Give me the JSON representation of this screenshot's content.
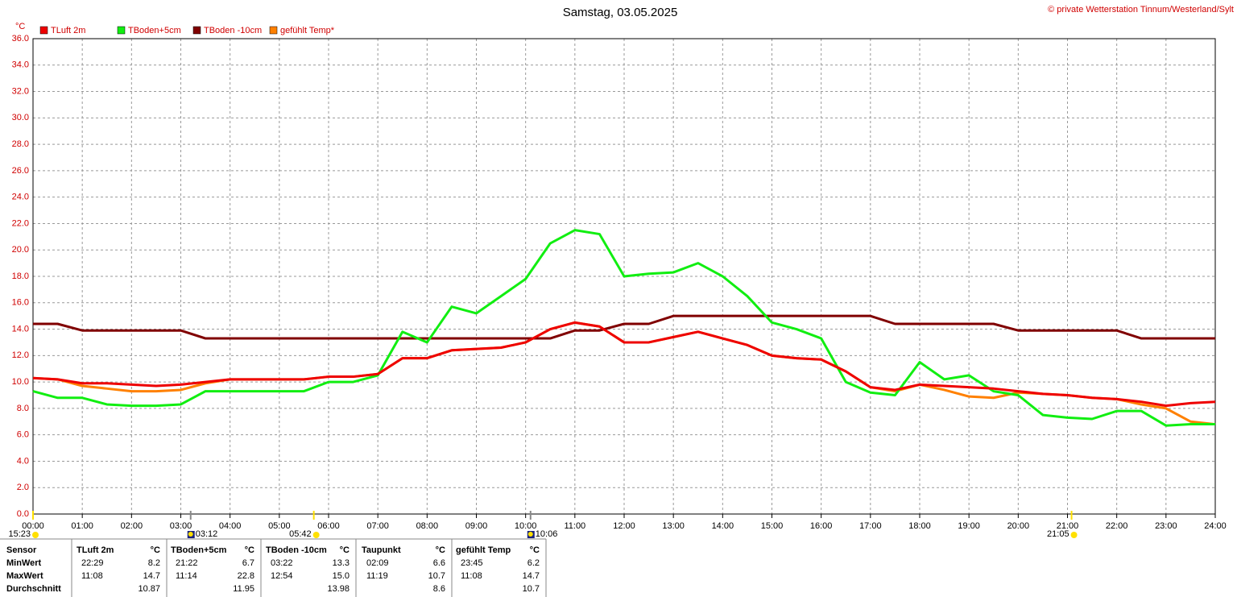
{
  "chart_data": {
    "type": "line",
    "title": "Samstag, 03.05.2025",
    "credit": "© private Wetterstation Tinnum/Westerland/Sylt",
    "ylabel": "°C",
    "x": [
      0,
      0.5,
      1,
      1.5,
      2,
      2.5,
      3,
      3.5,
      4,
      4.5,
      5,
      5.5,
      6,
      6.5,
      7,
      7.5,
      8,
      8.5,
      9,
      9.5,
      10,
      10.5,
      11,
      11.5,
      12,
      12.5,
      13,
      13.5,
      14,
      14.5,
      15,
      15.5,
      16,
      16.5,
      17,
      17.5,
      18,
      18.5,
      19,
      19.5,
      20,
      20.5,
      21,
      21.5,
      22,
      22.5,
      23,
      23.5,
      24
    ],
    "series": [
      {
        "name": "TLuft 2m",
        "color": "#ee0000",
        "values": [
          10.3,
          10.2,
          9.9,
          9.9,
          9.8,
          9.7,
          9.8,
          10.0,
          10.2,
          10.2,
          10.2,
          10.2,
          10.4,
          10.4,
          10.6,
          11.8,
          11.8,
          12.4,
          12.5,
          12.6,
          13.0,
          14.0,
          14.5,
          14.2,
          13.0,
          13.0,
          13.4,
          13.8,
          13.3,
          12.8,
          12.0,
          11.8,
          11.7,
          10.8,
          9.6,
          9.4,
          9.8,
          9.7,
          9.6,
          9.5,
          9.3,
          9.1,
          9.0,
          8.8,
          8.7,
          8.5,
          8.2,
          8.4,
          8.5
        ]
      },
      {
        "name": "TBoden+5cm",
        "color": "#11ee11",
        "values": [
          9.3,
          8.8,
          8.8,
          8.3,
          8.2,
          8.2,
          8.3,
          9.3,
          9.3,
          9.3,
          9.3,
          9.3,
          10.0,
          10.0,
          10.5,
          13.8,
          13.0,
          15.7,
          15.2,
          16.5,
          17.8,
          20.5,
          21.5,
          21.2,
          18.0,
          18.2,
          18.3,
          19.0,
          18.0,
          16.5,
          14.5,
          14.0,
          13.3,
          10.0,
          9.2,
          9.0,
          11.5,
          10.2,
          10.5,
          9.3,
          9.0,
          7.5,
          7.3,
          7.2,
          7.8,
          7.8,
          6.7,
          6.8,
          6.8
        ]
      },
      {
        "name": "TBoden -10cm",
        "color": "#800000",
        "values": [
          14.4,
          14.4,
          13.9,
          13.9,
          13.9,
          13.9,
          13.9,
          13.3,
          13.3,
          13.3,
          13.3,
          13.3,
          13.3,
          13.3,
          13.3,
          13.3,
          13.3,
          13.3,
          13.3,
          13.3,
          13.3,
          13.3,
          13.9,
          13.9,
          14.4,
          14.4,
          15.0,
          15.0,
          15.0,
          15.0,
          15.0,
          15.0,
          15.0,
          15.0,
          15.0,
          14.4,
          14.4,
          14.4,
          14.4,
          14.4,
          13.9,
          13.9,
          13.9,
          13.9,
          13.9,
          13.3,
          13.3,
          13.3,
          13.3
        ]
      },
      {
        "name": "gefühlt Temp*",
        "color": "#ff8000",
        "values": [
          10.3,
          10.2,
          9.7,
          9.5,
          9.3,
          9.3,
          9.4,
          9.9,
          10.2,
          10.2,
          10.2,
          10.2,
          10.4,
          10.4,
          10.6,
          11.8,
          11.8,
          12.4,
          12.5,
          12.6,
          13.0,
          14.0,
          14.5,
          14.2,
          13.0,
          13.0,
          13.4,
          13.8,
          13.3,
          12.8,
          12.0,
          11.8,
          11.7,
          10.8,
          9.6,
          9.3,
          9.8,
          9.4,
          8.9,
          8.8,
          9.2,
          9.1,
          9.0,
          8.8,
          8.7,
          8.3,
          8.0,
          7.0,
          6.8
        ]
      }
    ],
    "xlim": [
      0,
      24
    ],
    "xticks": [
      {
        "value": 0,
        "label": "00:00"
      },
      {
        "value": 1,
        "label": "01:00"
      },
      {
        "value": 2,
        "label": "02:00"
      },
      {
        "value": 3,
        "label": "03:00"
      },
      {
        "value": 4,
        "label": "04:00"
      },
      {
        "value": 5,
        "label": "05:00"
      },
      {
        "value": 6,
        "label": "06:00"
      },
      {
        "value": 7,
        "label": "07:00"
      },
      {
        "value": 8,
        "label": "08:00"
      },
      {
        "value": 9,
        "label": "09:00"
      },
      {
        "value": 10,
        "label": "10:00"
      },
      {
        "value": 11,
        "label": "11:00"
      },
      {
        "value": 12,
        "label": "12:00"
      },
      {
        "value": 13,
        "label": "13:00"
      },
      {
        "value": 14,
        "label": "14:00"
      },
      {
        "value": 15,
        "label": "15:00"
      },
      {
        "value": 16,
        "label": "16:00"
      },
      {
        "value": 17,
        "label": "17:00"
      },
      {
        "value": 18,
        "label": "18:00"
      },
      {
        "value": 19,
        "label": "19:00"
      },
      {
        "value": 20,
        "label": "20:00"
      },
      {
        "value": 21,
        "label": "21:00"
      },
      {
        "value": 22,
        "label": "22:00"
      },
      {
        "value": 23,
        "label": "23:00"
      },
      {
        "value": 24,
        "label": "24:00"
      }
    ],
    "ylim": [
      0,
      36
    ],
    "yticks": [
      {
        "value": 0,
        "label": "0.0"
      },
      {
        "value": 2,
        "label": "2.0"
      },
      {
        "value": 4,
        "label": "4.0"
      },
      {
        "value": 6,
        "label": "6.0"
      },
      {
        "value": 8,
        "label": "8.0"
      },
      {
        "value": 10,
        "label": "10.0"
      },
      {
        "value": 12,
        "label": "12.0"
      },
      {
        "value": 14,
        "label": "14.0"
      },
      {
        "value": 16,
        "label": "16.0"
      },
      {
        "value": 18,
        "label": "18.0"
      },
      {
        "value": 20,
        "label": "20.0"
      },
      {
        "value": 22,
        "label": "22.0"
      },
      {
        "value": 24,
        "label": "24.0"
      },
      {
        "value": 26,
        "label": "26.0"
      },
      {
        "value": 28,
        "label": "28.0"
      },
      {
        "value": 30,
        "label": "30.0"
      },
      {
        "value": 32,
        "label": "32.0"
      },
      {
        "value": 34,
        "label": "34.0"
      },
      {
        "value": 36,
        "label": "36.0"
      }
    ],
    "grid": true,
    "markers": [
      {
        "x": 0,
        "label": "15:23",
        "kind": "sun"
      },
      {
        "x": 3.2,
        "label": "03:12",
        "kind": "moon"
      },
      {
        "x": 5.7,
        "label": "05:42",
        "kind": "sun"
      },
      {
        "x": 10.1,
        "label": "10:06",
        "kind": "moon"
      },
      {
        "x": 21.083,
        "label": "21:05",
        "kind": "sun"
      }
    ]
  },
  "table": {
    "row_labels": [
      "Sensor",
      "MinWert",
      "MaxWert",
      "Durchschnitt"
    ],
    "columns": [
      {
        "name": "TLuft 2m",
        "unit": "°C",
        "min": [
          "22:29",
          "8.2"
        ],
        "max": [
          "11:08",
          "14.7"
        ],
        "avg": "10.87"
      },
      {
        "name": "TBoden+5cm",
        "unit": "°C",
        "min": [
          "21:22",
          "6.7"
        ],
        "max": [
          "11:14",
          "22.8"
        ],
        "avg": "11.95"
      },
      {
        "name": "TBoden -10cm",
        "unit": "°C",
        "min": [
          "03:22",
          "13.3"
        ],
        "max": [
          "12:54",
          "15.0"
        ],
        "avg": "13.98"
      },
      {
        "name": "Taupunkt",
        "unit": "°C",
        "min": [
          "02:09",
          "6.6"
        ],
        "max": [
          "11:19",
          "10.7"
        ],
        "avg": "8.6"
      },
      {
        "name": "gefühlt Temp",
        "unit": "°C",
        "min": [
          "23:45",
          "6.2"
        ],
        "max": [
          "11:08",
          "14.7"
        ],
        "avg": "10.7"
      }
    ]
  }
}
